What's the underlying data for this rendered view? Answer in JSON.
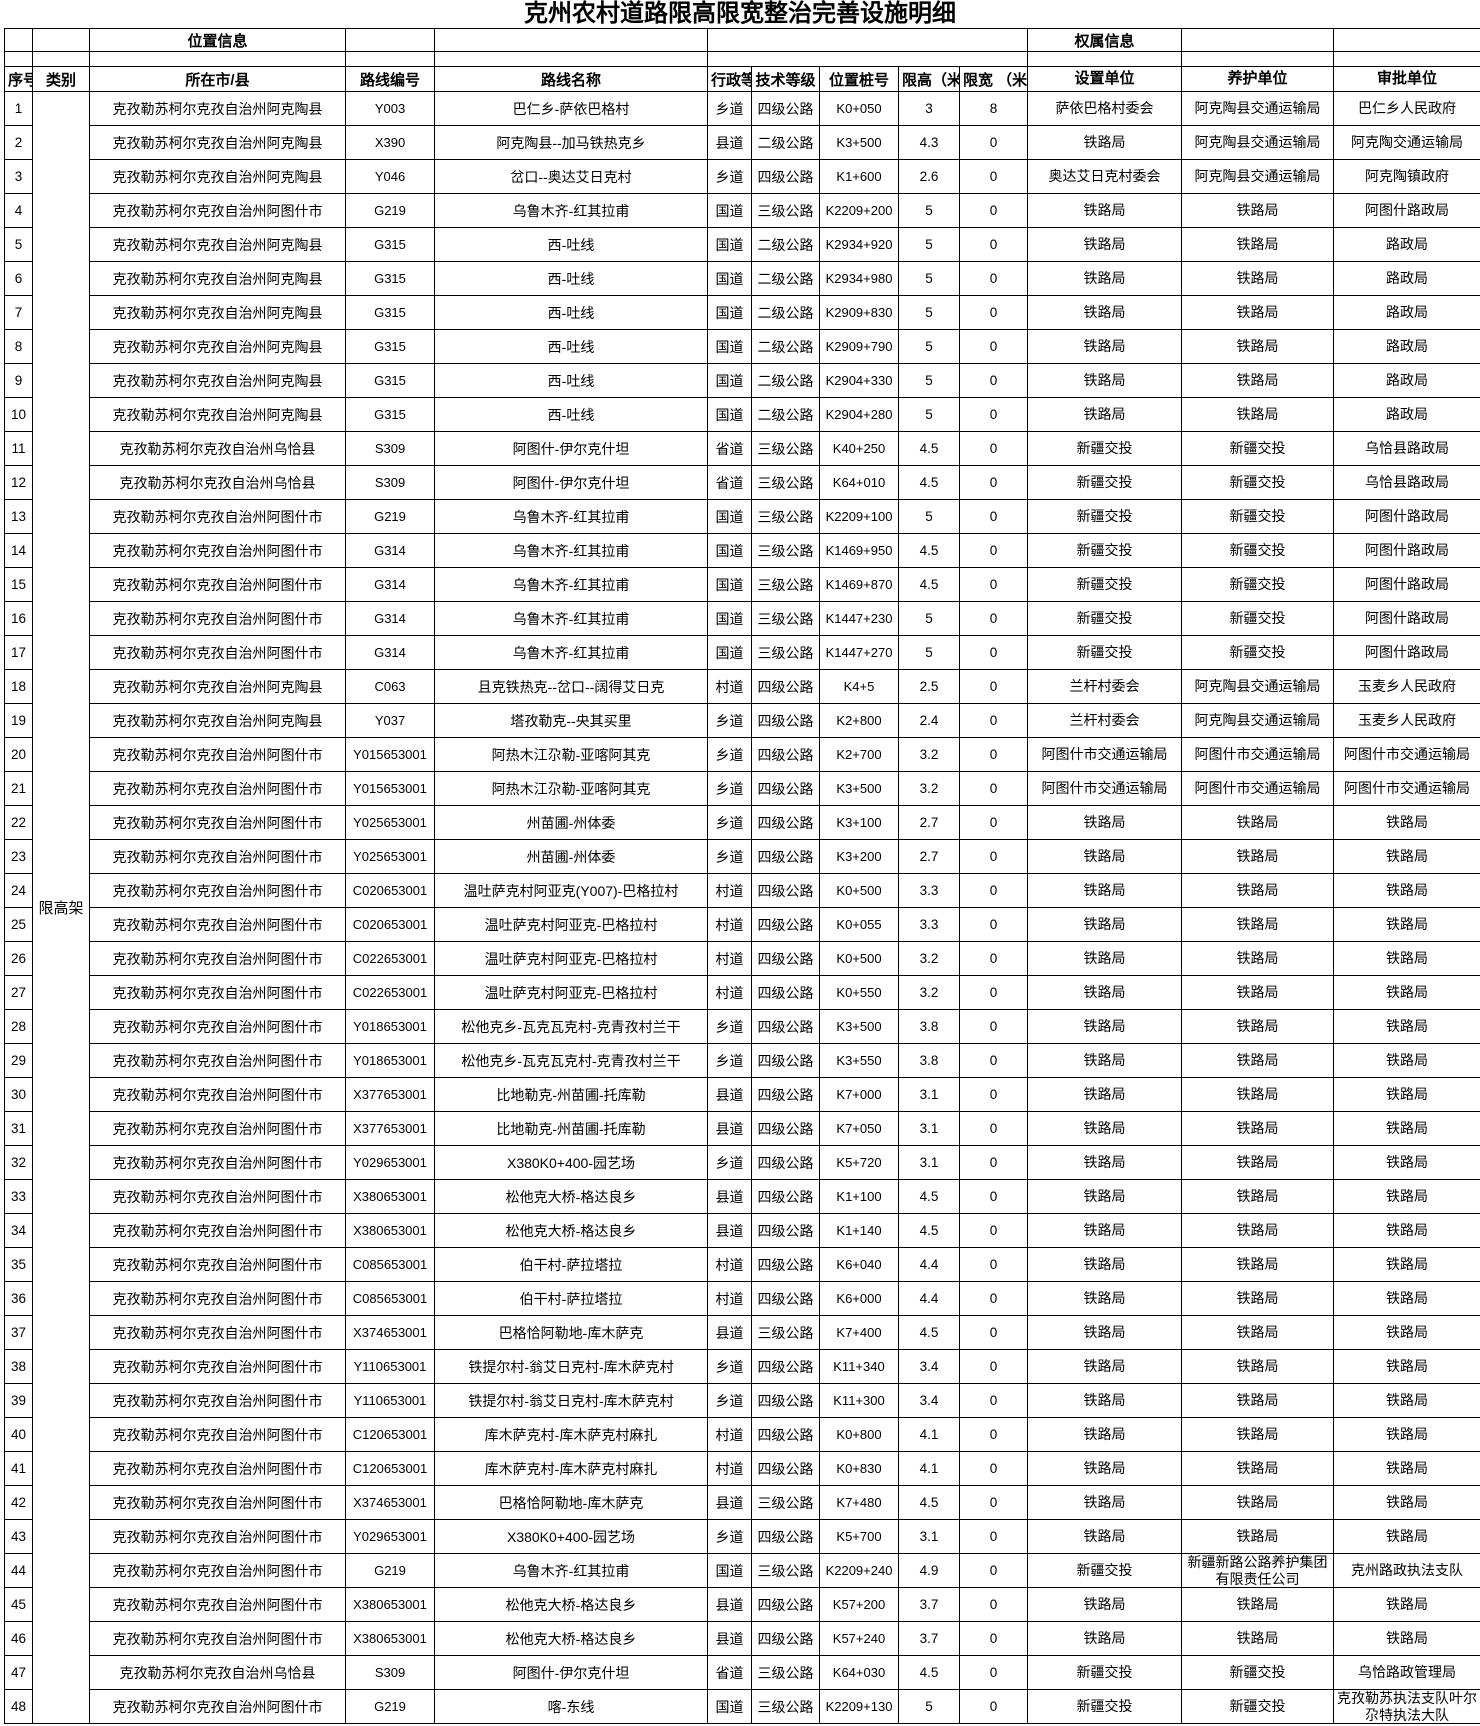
{
  "title": "克州农村道路限高限宽整治完善设施明细",
  "header": {
    "group_location": "位置信息",
    "group_ownership": "权属信息",
    "columns": [
      "序号",
      "类别",
      "所在市/县",
      "路线编号",
      "路线名称",
      "行政等级",
      "技术等级",
      "位置桩号",
      "限高（米）",
      "限宽 （米）",
      "设置单位",
      "养护单位",
      "审批单位"
    ]
  },
  "category_label": "限高架",
  "rows": [
    [
      "1",
      "克孜勒苏柯尔克孜自治州阿克陶县",
      "Y003",
      "巴仁乡-萨依巴格村",
      "乡道",
      "四级公路",
      "K0+050",
      "3",
      "8",
      "萨依巴格村委会",
      "阿克陶县交通运输局",
      "巴仁乡人民政府"
    ],
    [
      "2",
      "克孜勒苏柯尔克孜自治州阿克陶县",
      "X390",
      "阿克陶县--加马铁热克乡",
      "县道",
      "二级公路",
      "K3+500",
      "4.3",
      "0",
      "铁路局",
      "阿克陶县交通运输局",
      "阿克陶交通运输局"
    ],
    [
      "3",
      "克孜勒苏柯尔克孜自治州阿克陶县",
      "Y046",
      "岔口--奥达艾日克村",
      "乡道",
      "四级公路",
      "K1+600",
      "2.6",
      "0",
      "奥达艾日克村委会",
      "阿克陶县交通运输局",
      "阿克陶镇政府"
    ],
    [
      "4",
      "克孜勒苏柯尔克孜自治州阿图什市",
      "G219",
      "乌鲁木齐-红其拉甫",
      "国道",
      "三级公路",
      "K2209+200",
      "5",
      "0",
      "铁路局",
      "铁路局",
      "阿图什路政局"
    ],
    [
      "5",
      "克孜勒苏柯尔克孜自治州阿克陶县",
      "G315",
      "西-吐线",
      "国道",
      "二级公路",
      "K2934+920",
      "5",
      "0",
      "铁路局",
      "铁路局",
      "路政局"
    ],
    [
      "6",
      "克孜勒苏柯尔克孜自治州阿克陶县",
      "G315",
      "西-吐线",
      "国道",
      "二级公路",
      "K2934+980",
      "5",
      "0",
      "铁路局",
      "铁路局",
      "路政局"
    ],
    [
      "7",
      "克孜勒苏柯尔克孜自治州阿克陶县",
      "G315",
      "西-吐线",
      "国道",
      "二级公路",
      "K2909+830",
      "5",
      "0",
      "铁路局",
      "铁路局",
      "路政局"
    ],
    [
      "8",
      "克孜勒苏柯尔克孜自治州阿克陶县",
      "G315",
      "西-吐线",
      "国道",
      "二级公路",
      "K2909+790",
      "5",
      "0",
      "铁路局",
      "铁路局",
      "路政局"
    ],
    [
      "9",
      "克孜勒苏柯尔克孜自治州阿克陶县",
      "G315",
      "西-吐线",
      "国道",
      "二级公路",
      "K2904+330",
      "5",
      "0",
      "铁路局",
      "铁路局",
      "路政局"
    ],
    [
      "10",
      "克孜勒苏柯尔克孜自治州阿克陶县",
      "G315",
      "西-吐线",
      "国道",
      "二级公路",
      "K2904+280",
      "5",
      "0",
      "铁路局",
      "铁路局",
      "路政局"
    ],
    [
      "11",
      "克孜勒苏柯尔克孜自治州乌恰县",
      "S309",
      "阿图什-伊尔克什坦",
      "省道",
      "三级公路",
      "K40+250",
      "4.5",
      "0",
      "新疆交投",
      "新疆交投",
      "乌恰县路政局"
    ],
    [
      "12",
      "克孜勒苏柯尔克孜自治州乌恰县",
      "S309",
      "阿图什-伊尔克什坦",
      "省道",
      "三级公路",
      "K64+010",
      "4.5",
      "0",
      "新疆交投",
      "新疆交投",
      "乌恰县路政局"
    ],
    [
      "13",
      "克孜勒苏柯尔克孜自治州阿图什市",
      "G219",
      "乌鲁木齐-红其拉甫",
      "国道",
      "三级公路",
      "K2209+100",
      "5",
      "0",
      "新疆交投",
      "新疆交投",
      "阿图什路政局"
    ],
    [
      "14",
      "克孜勒苏柯尔克孜自治州阿图什市",
      "G314",
      "乌鲁木齐-红其拉甫",
      "国道",
      "三级公路",
      "K1469+950",
      "4.5",
      "0",
      "新疆交投",
      "新疆交投",
      "阿图什路政局"
    ],
    [
      "15",
      "克孜勒苏柯尔克孜自治州阿图什市",
      "G314",
      "乌鲁木齐-红其拉甫",
      "国道",
      "三级公路",
      "K1469+870",
      "4.5",
      "0",
      "新疆交投",
      "新疆交投",
      "阿图什路政局"
    ],
    [
      "16",
      "克孜勒苏柯尔克孜自治州阿图什市",
      "G314",
      "乌鲁木齐-红其拉甫",
      "国道",
      "三级公路",
      "K1447+230",
      "5",
      "0",
      "新疆交投",
      "新疆交投",
      "阿图什路政局"
    ],
    [
      "17",
      "克孜勒苏柯尔克孜自治州阿图什市",
      "G314",
      "乌鲁木齐-红其拉甫",
      "国道",
      "三级公路",
      "K1447+270",
      "5",
      "0",
      "新疆交投",
      "新疆交投",
      "阿图什路政局"
    ],
    [
      "18",
      "克孜勒苏柯尔克孜自治州阿克陶县",
      "C063",
      "且克铁热克--岔口--阔得艾日克",
      "村道",
      "四级公路",
      "K4+5",
      "2.5",
      "0",
      "兰杆村委会",
      "阿克陶县交通运输局",
      "玉麦乡人民政府"
    ],
    [
      "19",
      "克孜勒苏柯尔克孜自治州阿克陶县",
      "Y037",
      "塔孜勒克--央其买里",
      "乡道",
      "四级公路",
      "K2+800",
      "2.4",
      "0",
      "兰杆村委会",
      "阿克陶县交通运输局",
      "玉麦乡人民政府"
    ],
    [
      "20",
      "克孜勒苏柯尔克孜自治州阿图什市",
      "Y015653001",
      "阿热木江尕勒-亚喀阿其克",
      "乡道",
      "四级公路",
      "K2+700",
      "3.2",
      "0",
      "阿图什市交通运输局",
      "阿图什市交通运输局",
      "阿图什市交通运输局"
    ],
    [
      "21",
      "克孜勒苏柯尔克孜自治州阿图什市",
      "Y015653001",
      "阿热木江尕勒-亚喀阿其克",
      "乡道",
      "四级公路",
      "K3+500",
      "3.2",
      "0",
      "阿图什市交通运输局",
      "阿图什市交通运输局",
      "阿图什市交通运输局"
    ],
    [
      "22",
      "克孜勒苏柯尔克孜自治州阿图什市",
      "Y025653001",
      "州苗圃-州体委",
      "乡道",
      "四级公路",
      "K3+100",
      "2.7",
      "0",
      "铁路局",
      "铁路局",
      "铁路局"
    ],
    [
      "23",
      "克孜勒苏柯尔克孜自治州阿图什市",
      "Y025653001",
      "州苗圃-州体委",
      "乡道",
      "四级公路",
      "K3+200",
      "2.7",
      "0",
      "铁路局",
      "铁路局",
      "铁路局"
    ],
    [
      "24",
      "克孜勒苏柯尔克孜自治州阿图什市",
      "C020653001",
      "温吐萨克村阿亚克(Y007)-巴格拉村",
      "村道",
      "四级公路",
      "K0+500",
      "3.3",
      "0",
      "铁路局",
      "铁路局",
      "铁路局"
    ],
    [
      "25",
      "克孜勒苏柯尔克孜自治州阿图什市",
      "C020653001",
      "温吐萨克村阿亚克-巴格拉村",
      "村道",
      "四级公路",
      "K0+055",
      "3.3",
      "0",
      "铁路局",
      "铁路局",
      "铁路局"
    ],
    [
      "26",
      "克孜勒苏柯尔克孜自治州阿图什市",
      "C022653001",
      "温吐萨克村阿亚克-巴格拉村",
      "村道",
      "四级公路",
      "K0+500",
      "3.2",
      "0",
      "铁路局",
      "铁路局",
      "铁路局"
    ],
    [
      "27",
      "克孜勒苏柯尔克孜自治州阿图什市",
      "C022653001",
      "温吐萨克村阿亚克-巴格拉村",
      "村道",
      "四级公路",
      "K0+550",
      "3.2",
      "0",
      "铁路局",
      "铁路局",
      "铁路局"
    ],
    [
      "28",
      "克孜勒苏柯尔克孜自治州阿图什市",
      "Y018653001",
      "松他克乡-瓦克瓦克村-克青孜村兰干",
      "乡道",
      "四级公路",
      "K3+500",
      "3.8",
      "0",
      "铁路局",
      "铁路局",
      "铁路局"
    ],
    [
      "29",
      "克孜勒苏柯尔克孜自治州阿图什市",
      "Y018653001",
      "松他克乡-瓦克瓦克村-克青孜村兰干",
      "乡道",
      "四级公路",
      "K3+550",
      "3.8",
      "0",
      "铁路局",
      "铁路局",
      "铁路局"
    ],
    [
      "30",
      "克孜勒苏柯尔克孜自治州阿图什市",
      "X377653001",
      "比地勒克-州苗圃-托库勒",
      "县道",
      "四级公路",
      "K7+000",
      "3.1",
      "0",
      "铁路局",
      "铁路局",
      "铁路局"
    ],
    [
      "31",
      "克孜勒苏柯尔克孜自治州阿图什市",
      "X377653001",
      "比地勒克-州苗圃-托库勒",
      "县道",
      "四级公路",
      "K7+050",
      "3.1",
      "0",
      "铁路局",
      "铁路局",
      "铁路局"
    ],
    [
      "32",
      "克孜勒苏柯尔克孜自治州阿图什市",
      "Y029653001",
      "X380K0+400-园艺场",
      "乡道",
      "四级公路",
      "K5+720",
      "3.1",
      "0",
      "铁路局",
      "铁路局",
      "铁路局"
    ],
    [
      "33",
      "克孜勒苏柯尔克孜自治州阿图什市",
      "X380653001",
      "松他克大桥-格达良乡",
      "县道",
      "四级公路",
      "K1+100",
      "4.5",
      "0",
      "铁路局",
      "铁路局",
      "铁路局"
    ],
    [
      "34",
      "克孜勒苏柯尔克孜自治州阿图什市",
      "X380653001",
      "松他克大桥-格达良乡",
      "县道",
      "四级公路",
      "K1+140",
      "4.5",
      "0",
      "铁路局",
      "铁路局",
      "铁路局"
    ],
    [
      "35",
      "克孜勒苏柯尔克孜自治州阿图什市",
      "C085653001",
      "伯干村-萨拉塔拉",
      "村道",
      "四级公路",
      "K6+040",
      "4.4",
      "0",
      "铁路局",
      "铁路局",
      "铁路局"
    ],
    [
      "36",
      "克孜勒苏柯尔克孜自治州阿图什市",
      "C085653001",
      "伯干村-萨拉塔拉",
      "村道",
      "四级公路",
      "K6+000",
      "4.4",
      "0",
      "铁路局",
      "铁路局",
      "铁路局"
    ],
    [
      "37",
      "克孜勒苏柯尔克孜自治州阿图什市",
      "X374653001",
      "巴格恰阿勒地-库木萨克",
      "县道",
      "三级公路",
      "K7+400",
      "4.5",
      "0",
      "铁路局",
      "铁路局",
      "铁路局"
    ],
    [
      "38",
      "克孜勒苏柯尔克孜自治州阿图什市",
      "Y110653001",
      "铁提尔村-翁艾日克村-库木萨克村",
      "乡道",
      "四级公路",
      "K11+340",
      "3.4",
      "0",
      "铁路局",
      "铁路局",
      "铁路局"
    ],
    [
      "39",
      "克孜勒苏柯尔克孜自治州阿图什市",
      "Y110653001",
      "铁提尔村-翁艾日克村-库木萨克村",
      "乡道",
      "四级公路",
      "K11+300",
      "3.4",
      "0",
      "铁路局",
      "铁路局",
      "铁路局"
    ],
    [
      "40",
      "克孜勒苏柯尔克孜自治州阿图什市",
      "C120653001",
      "库木萨克村-库木萨克村麻扎",
      "村道",
      "四级公路",
      "K0+800",
      "4.1",
      "0",
      "铁路局",
      "铁路局",
      "铁路局"
    ],
    [
      "41",
      "克孜勒苏柯尔克孜自治州阿图什市",
      "C120653001",
      "库木萨克村-库木萨克村麻扎",
      "村道",
      "四级公路",
      "K0+830",
      "4.1",
      "0",
      "铁路局",
      "铁路局",
      "铁路局"
    ],
    [
      "42",
      "克孜勒苏柯尔克孜自治州阿图什市",
      "X374653001",
      "巴格恰阿勒地-库木萨克",
      "县道",
      "三级公路",
      "K7+480",
      "4.5",
      "0",
      "铁路局",
      "铁路局",
      "铁路局"
    ],
    [
      "43",
      "克孜勒苏柯尔克孜自治州阿图什市",
      "Y029653001",
      "X380K0+400-园艺场",
      "乡道",
      "四级公路",
      "K5+700",
      "3.1",
      "0",
      "铁路局",
      "铁路局",
      "铁路局"
    ],
    [
      "44",
      "克孜勒苏柯尔克孜自治州阿图什市",
      "G219",
      "乌鲁木齐-红其拉甫",
      "国道",
      "三级公路",
      "K2209+240",
      "4.9",
      "0",
      "新疆交投",
      "新疆新路公路养护集团有限责任公司",
      "克州路政执法支队"
    ],
    [
      "45",
      "克孜勒苏柯尔克孜自治州阿图什市",
      "X380653001",
      "松他克大桥-格达良乡",
      "县道",
      "四级公路",
      "K57+200",
      "3.7",
      "0",
      "铁路局",
      "铁路局",
      "铁路局"
    ],
    [
      "46",
      "克孜勒苏柯尔克孜自治州阿图什市",
      "X380653001",
      "松他克大桥-格达良乡",
      "县道",
      "四级公路",
      "K57+240",
      "3.7",
      "0",
      "铁路局",
      "铁路局",
      "铁路局"
    ],
    [
      "47",
      "克孜勒苏柯尔克孜自治州乌恰县",
      "S309",
      "阿图什-伊尔克什坦",
      "省道",
      "三级公路",
      "K64+030",
      "4.5",
      "0",
      "新疆交投",
      "新疆交投",
      "乌恰路政管理局"
    ],
    [
      "48",
      "克孜勒苏柯尔克孜自治州阿图什市",
      "G219",
      "喀-东线",
      "国道",
      "三级公路",
      "K2209+130",
      "5",
      "0",
      "新疆交投",
      "新疆交投",
      "克孜勒苏执法支队叶尔尕特执法大队"
    ]
  ]
}
